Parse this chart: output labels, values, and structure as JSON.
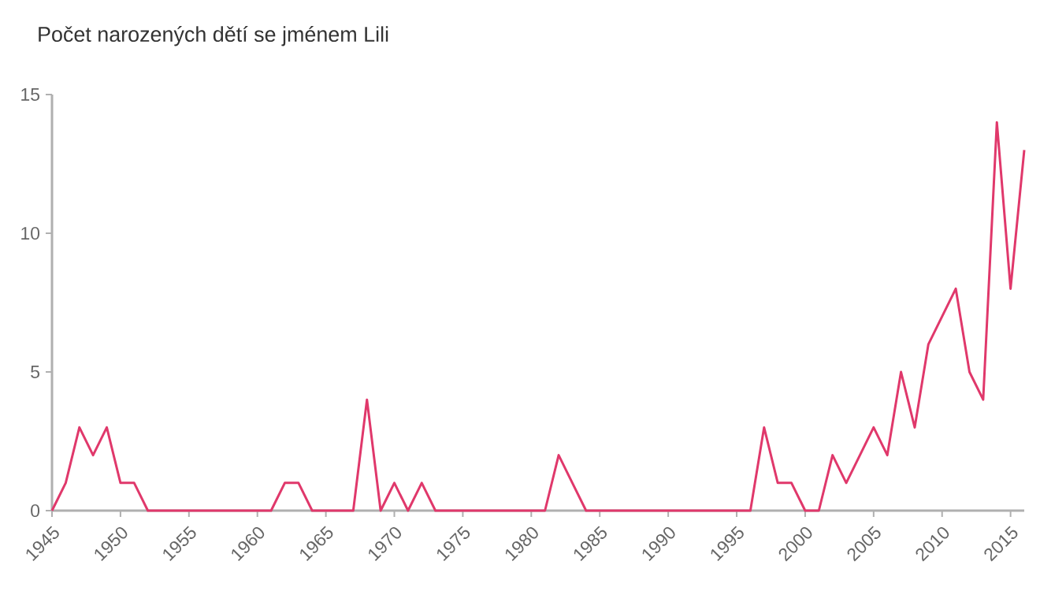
{
  "chart_data": {
    "type": "line",
    "title": "Počet narozených dětí se jménem Lili",
    "x": [
      1945,
      1946,
      1947,
      1948,
      1949,
      1950,
      1951,
      1952,
      1953,
      1954,
      1955,
      1956,
      1957,
      1958,
      1959,
      1960,
      1961,
      1962,
      1963,
      1964,
      1965,
      1966,
      1967,
      1968,
      1969,
      1970,
      1971,
      1972,
      1973,
      1974,
      1975,
      1976,
      1977,
      1978,
      1979,
      1980,
      1981,
      1982,
      1983,
      1984,
      1985,
      1986,
      1987,
      1988,
      1989,
      1990,
      1991,
      1992,
      1993,
      1994,
      1995,
      1996,
      1997,
      1998,
      1999,
      2000,
      2001,
      2002,
      2003,
      2004,
      2005,
      2006,
      2007,
      2008,
      2009,
      2010,
      2011,
      2012,
      2013,
      2014,
      2015,
      2016
    ],
    "values": [
      0,
      1,
      3,
      2,
      3,
      1,
      1,
      0,
      0,
      0,
      0,
      0,
      0,
      0,
      0,
      0,
      0,
      1,
      1,
      0,
      0,
      0,
      0,
      4,
      0,
      1,
      0,
      1,
      0,
      0,
      0,
      0,
      0,
      0,
      0,
      0,
      0,
      2,
      1,
      0,
      0,
      0,
      0,
      0,
      0,
      0,
      0,
      0,
      0,
      0,
      0,
      0,
      3,
      1,
      1,
      0,
      0,
      2,
      1,
      2,
      3,
      2,
      5,
      3,
      6,
      7,
      8,
      5,
      4,
      14,
      8,
      13
    ],
    "color": "#e0386b",
    "xlim": [
      1945,
      2016
    ],
    "ylim": [
      0,
      15
    ],
    "xticks": [
      1945,
      1950,
      1955,
      1960,
      1965,
      1970,
      1975,
      1980,
      1985,
      1990,
      1995,
      2000,
      2005,
      2010,
      2015
    ],
    "yticks": [
      0,
      5,
      10,
      15
    ],
    "grid": false,
    "marker": "none",
    "line_style": "solid"
  }
}
